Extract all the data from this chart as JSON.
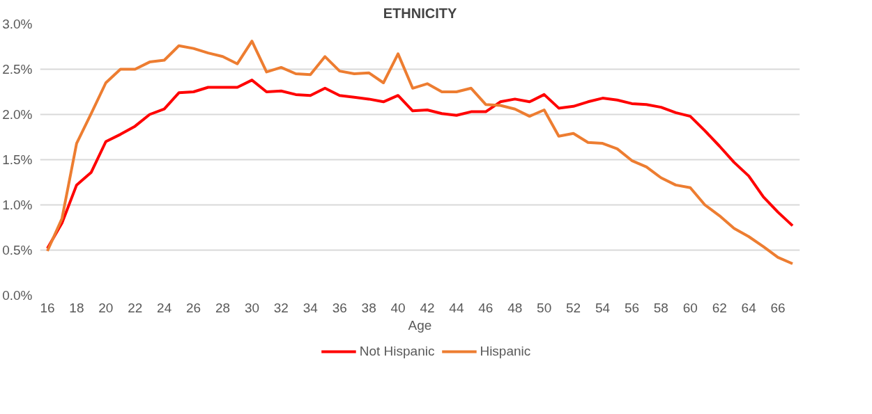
{
  "chart_data": {
    "type": "line",
    "title": "ETHNICITY",
    "xlabel": "Age",
    "x": [
      16,
      17,
      18,
      19,
      20,
      21,
      22,
      23,
      24,
      25,
      26,
      27,
      28,
      29,
      30,
      31,
      32,
      33,
      34,
      35,
      36,
      37,
      38,
      39,
      40,
      41,
      42,
      43,
      44,
      45,
      46,
      47,
      48,
      49,
      50,
      51,
      52,
      53,
      54,
      55,
      56,
      57,
      58,
      59,
      60,
      61,
      62,
      63,
      64,
      65,
      66,
      67
    ],
    "xlim": [
      15.5,
      67.5
    ],
    "xticks": [
      16,
      18,
      20,
      22,
      24,
      26,
      28,
      30,
      32,
      34,
      36,
      38,
      40,
      42,
      44,
      46,
      48,
      50,
      52,
      54,
      56,
      58,
      60,
      62,
      64,
      66
    ],
    "ylim": [
      0,
      3.0
    ],
    "yticks": [
      {
        "value": 0,
        "label": "0.0%"
      },
      {
        "value": 0.5,
        "label": "0.5%"
      },
      {
        "value": 1.0,
        "label": "1.0%"
      },
      {
        "value": 1.5,
        "label": "1.5%"
      },
      {
        "value": 2.0,
        "label": "2.0%"
      },
      {
        "value": 2.5,
        "label": "2.5%"
      },
      {
        "value": 3.0,
        "label": "3.0%"
      }
    ],
    "series": [
      {
        "name": "Not Hispanic",
        "color": "#ff0000",
        "values": [
          0.52,
          0.8,
          1.22,
          1.36,
          1.7,
          1.78,
          1.87,
          2.0,
          2.06,
          2.24,
          2.25,
          2.3,
          2.3,
          2.3,
          2.38,
          2.25,
          2.26,
          2.22,
          2.21,
          2.29,
          2.21,
          2.19,
          2.17,
          2.14,
          2.21,
          2.04,
          2.05,
          2.01,
          1.99,
          2.03,
          2.03,
          2.14,
          2.17,
          2.14,
          2.22,
          2.07,
          2.09,
          2.14,
          2.18,
          2.16,
          2.12,
          2.11,
          2.08,
          2.02,
          1.98,
          1.82,
          1.65,
          1.47,
          1.32,
          1.09,
          0.92,
          0.77
        ]
      },
      {
        "name": "Hispanic",
        "color": "#ed7d31",
        "values": [
          0.49,
          0.85,
          1.68,
          2.01,
          2.35,
          2.5,
          2.5,
          2.58,
          2.6,
          2.76,
          2.73,
          2.68,
          2.64,
          2.56,
          2.81,
          2.47,
          2.52,
          2.45,
          2.44,
          2.64,
          2.48,
          2.45,
          2.46,
          2.35,
          2.67,
          2.29,
          2.34,
          2.25,
          2.25,
          2.29,
          2.11,
          2.1,
          2.06,
          1.98,
          2.05,
          1.76,
          1.79,
          1.69,
          1.68,
          1.62,
          1.49,
          1.42,
          1.3,
          1.22,
          1.19,
          1.0,
          0.88,
          0.74,
          0.65,
          0.54,
          0.42,
          0.35
        ]
      }
    ],
    "grid": "y",
    "legend": "bottom",
    "marker": "none",
    "line_style": "solid"
  }
}
